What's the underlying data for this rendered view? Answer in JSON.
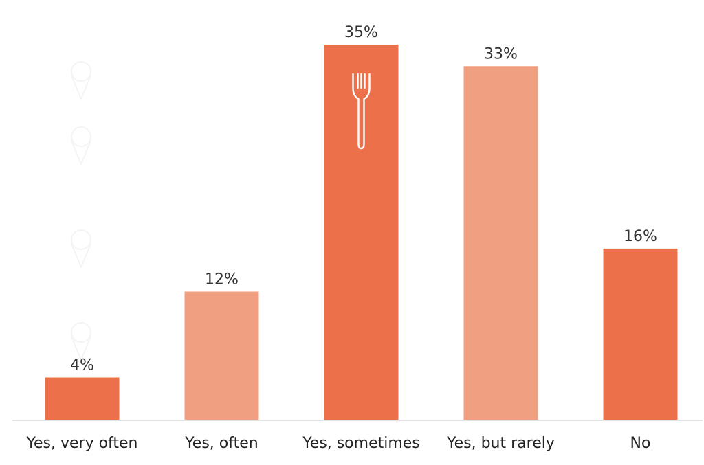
{
  "chart_data": {
    "type": "bar",
    "categories": [
      "Yes, very often",
      "Yes, often",
      "Yes, sometimes",
      "Yes, but rarely",
      "No"
    ],
    "values": [
      4,
      12,
      35,
      33,
      16
    ],
    "value_labels": [
      "4%",
      "12%",
      "35%",
      "33%",
      "16%"
    ],
    "unit": "%",
    "title": "",
    "xlabel": "",
    "ylabel": "",
    "ylim": [
      0,
      35
    ],
    "grid": false,
    "legend": "none",
    "bar_colors": [
      "#ec7049",
      "#f09f80",
      "#ec7049",
      "#f09f80",
      "#ec7049"
    ],
    "highlight_icon": "fork-icon",
    "background_icons": [
      "ice-cream-icon",
      "ice-cream-icon",
      "ice-cream-icon",
      "ice-cream-icon"
    ]
  }
}
